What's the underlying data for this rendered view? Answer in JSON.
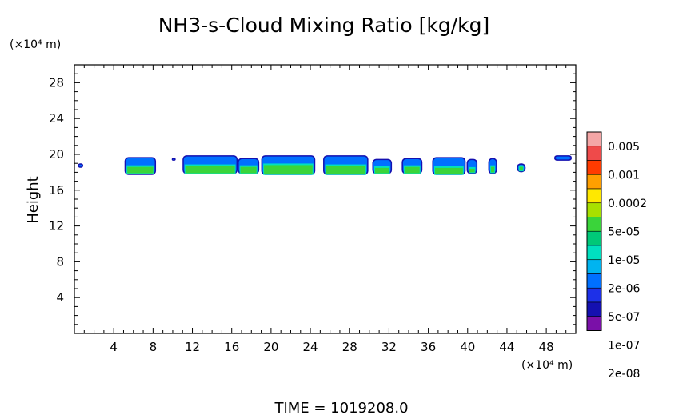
{
  "chart_data": {
    "type": "heatmap",
    "title": "NH3-s-Cloud Mixing Ratio [kg/kg]",
    "ylabel": "Height",
    "x_unit": "(×10⁴ m)",
    "y_unit": "(×10⁴ m)",
    "footer": "TIME  =  1019208.0",
    "xlim": [
      0,
      51
    ],
    "ylim": [
      0,
      30
    ],
    "x_ticks": [
      4,
      8,
      12,
      16,
      20,
      24,
      28,
      32,
      36,
      40,
      44,
      48
    ],
    "y_ticks": [
      4,
      8,
      12,
      16,
      20,
      24,
      28
    ],
    "x_tick_labels": [
      "4",
      "8",
      "12",
      "16",
      "20",
      "24",
      "28",
      "32",
      "36",
      "40",
      "44",
      "48"
    ],
    "y_tick_labels": [
      "4",
      "8",
      "12",
      "16",
      "20",
      "24",
      "28"
    ],
    "colorbar": {
      "labels": [
        "0.005",
        "0.001",
        "0.0002",
        "5e-05",
        "1e-05",
        "2e-06",
        "5e-07",
        "1e-07",
        "2e-08"
      ],
      "colors": [
        "#f4a6a6",
        "#ef4a4a",
        "#ff3b00",
        "#ff9f00",
        "#ffe800",
        "#a8e000",
        "#3ad43a",
        "#00c878",
        "#00e0c0",
        "#00b4f0",
        "#0070ff",
        "#1d30e8",
        "#1410b0",
        "#7a10a8"
      ]
    },
    "cloud_segments": [
      {
        "x0": 0.35,
        "x1": 0.9,
        "bottom": 18.5,
        "top": 19.0,
        "core_bottom": 0,
        "core_top": 0
      },
      {
        "x0": 5.1,
        "x1": 8.3,
        "bottom": 17.7,
        "top": 19.7,
        "core_bottom": 17.9,
        "core_top": 18.6
      },
      {
        "x0": 9.9,
        "x1": 10.3,
        "bottom": 19.3,
        "top": 19.6,
        "core_bottom": 0,
        "core_top": 0
      },
      {
        "x0": 11.0,
        "x1": 16.6,
        "bottom": 17.8,
        "top": 19.9,
        "core_bottom": 17.9,
        "core_top": 18.7
      },
      {
        "x0": 16.6,
        "x1": 18.8,
        "bottom": 17.8,
        "top": 19.6,
        "core_bottom": 17.9,
        "core_top": 18.6
      },
      {
        "x0": 19.0,
        "x1": 24.5,
        "bottom": 17.7,
        "top": 19.9,
        "core_bottom": 17.8,
        "core_top": 18.8
      },
      {
        "x0": 25.3,
        "x1": 29.9,
        "bottom": 17.7,
        "top": 19.9,
        "core_bottom": 17.8,
        "core_top": 18.7
      },
      {
        "x0": 30.3,
        "x1": 32.3,
        "bottom": 17.8,
        "top": 19.5,
        "core_bottom": 17.9,
        "core_top": 18.5
      },
      {
        "x0": 33.3,
        "x1": 35.4,
        "bottom": 17.8,
        "top": 19.6,
        "core_bottom": 17.9,
        "core_top": 18.6
      },
      {
        "x0": 36.4,
        "x1": 39.8,
        "bottom": 17.7,
        "top": 19.7,
        "core_bottom": 17.8,
        "core_top": 18.5
      },
      {
        "x0": 39.9,
        "x1": 41.0,
        "bottom": 17.8,
        "top": 19.5,
        "core_bottom": 18.0,
        "core_top": 18.4
      },
      {
        "x0": 42.1,
        "x1": 43.0,
        "bottom": 17.8,
        "top": 19.6,
        "core_bottom": 18.0,
        "core_top": 18.6
      },
      {
        "x0": 45.0,
        "x1": 45.9,
        "bottom": 18.0,
        "top": 19.0,
        "core_bottom": 18.2,
        "core_top": 18.6
      },
      {
        "x0": 48.8,
        "x1": 50.6,
        "bottom": 19.3,
        "top": 19.9,
        "core_bottom": 0,
        "core_top": 0
      }
    ]
  }
}
